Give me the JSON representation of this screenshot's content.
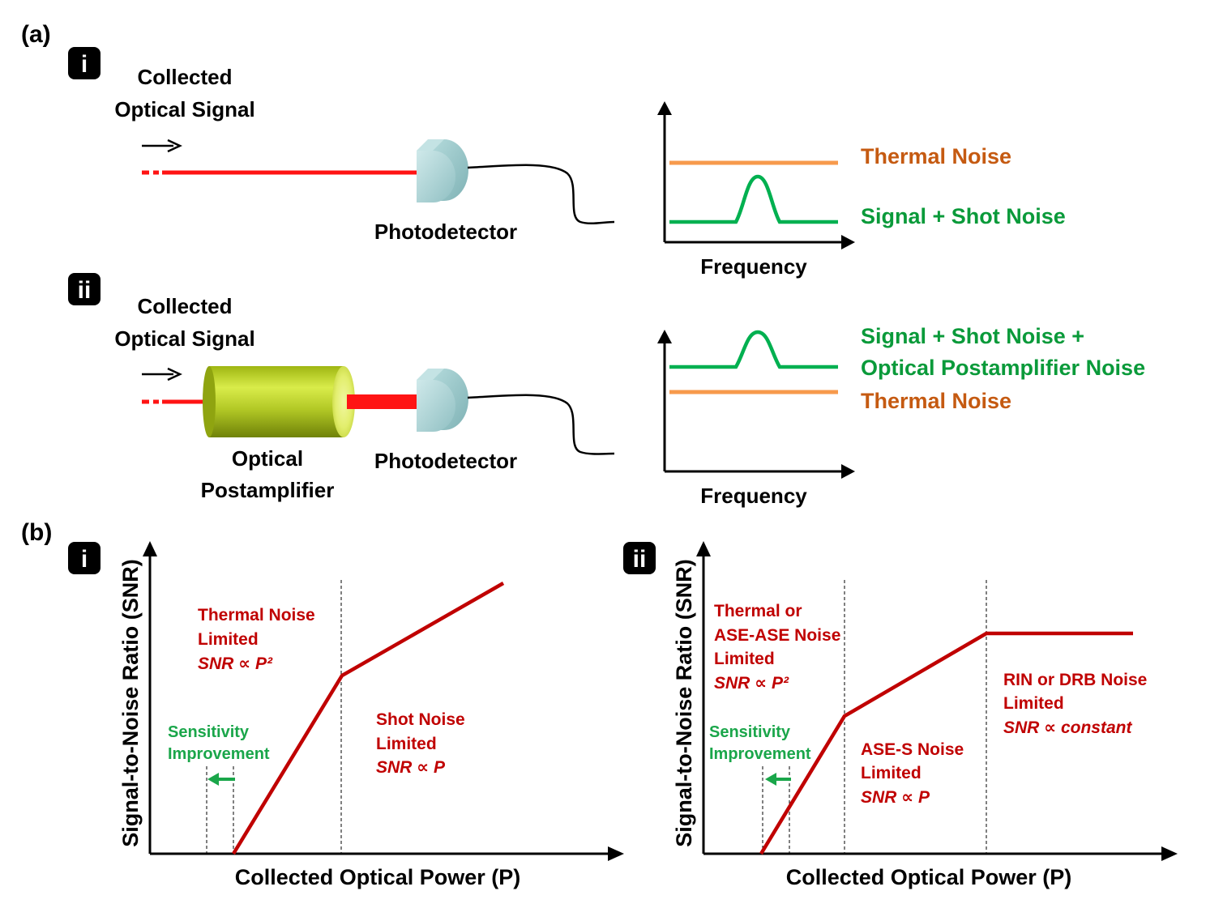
{
  "colors": {
    "laser_red": "#ff1414",
    "curve_red": "#c00000",
    "thermal_orange": "#f79a4c",
    "thermal_text": "#c55a11",
    "signal_green": "#00b050",
    "signal_text": "#0a9a3a",
    "sensitivity_green": "#1aa64a",
    "axis_black": "#000000",
    "detector_fill": "#a9d4d6",
    "amplifier_fill": "#b5cc22"
  },
  "icons": {
    "badge": "black-rounded-square",
    "direction_arrow": "right-arrow",
    "sensitivity_arrow": "left-arrow"
  },
  "panel_a": {
    "label": "(a)",
    "i": {
      "badge": "i",
      "input_label_line1": "Collected",
      "input_label_line2": "Optical Signal",
      "detector_label": "Photodetector",
      "spectrum_xlabel": "Frequency",
      "thermal_label": "Thermal Noise",
      "signal_label": "Signal + Shot Noise"
    },
    "ii": {
      "badge": "ii",
      "input_label_line1": "Collected",
      "input_label_line2": "Optical Signal",
      "amplifier_label_line1": "Optical",
      "amplifier_label_line2": "Postamplifier",
      "detector_label": "Photodetector",
      "spectrum_xlabel": "Frequency",
      "signal_label_line1": "Signal + Shot Noise +",
      "signal_label_line2": "Optical Postamplifier Noise",
      "thermal_label": "Thermal Noise"
    }
  },
  "panel_b": {
    "label": "(b)",
    "i": {
      "badge": "i",
      "ylabel": "Signal-to-Noise Ratio (SNR)",
      "xlabel": "Collected Optical Power (P)",
      "region1_line1": "Thermal Noise",
      "region1_line2": "Limited",
      "region1_formula": "SNR ∝ P²",
      "region2_line1": "Shot Noise",
      "region2_line2": "Limited",
      "region2_formula": "SNR ∝ P",
      "sensitivity_line1": "Sensitivity",
      "sensitivity_line2": "Improvement"
    },
    "ii": {
      "badge": "ii",
      "ylabel": "Signal-to-Noise Ratio (SNR)",
      "xlabel": "Collected Optical Power (P)",
      "region1_line1": "Thermal or",
      "region1_line2": "ASE-ASE Noise",
      "region1_line3": "Limited",
      "region1_formula": "SNR ∝ P²",
      "region2_line1": "ASE-S Noise",
      "region2_line2": "Limited",
      "region2_formula": "SNR ∝ P",
      "region3_line1": "RIN or DRB Noise",
      "region3_line2": "Limited",
      "region3_formula": "SNR ∝ constant",
      "sensitivity_line1": "Sensitivity",
      "sensitivity_line2": "Improvement"
    }
  }
}
